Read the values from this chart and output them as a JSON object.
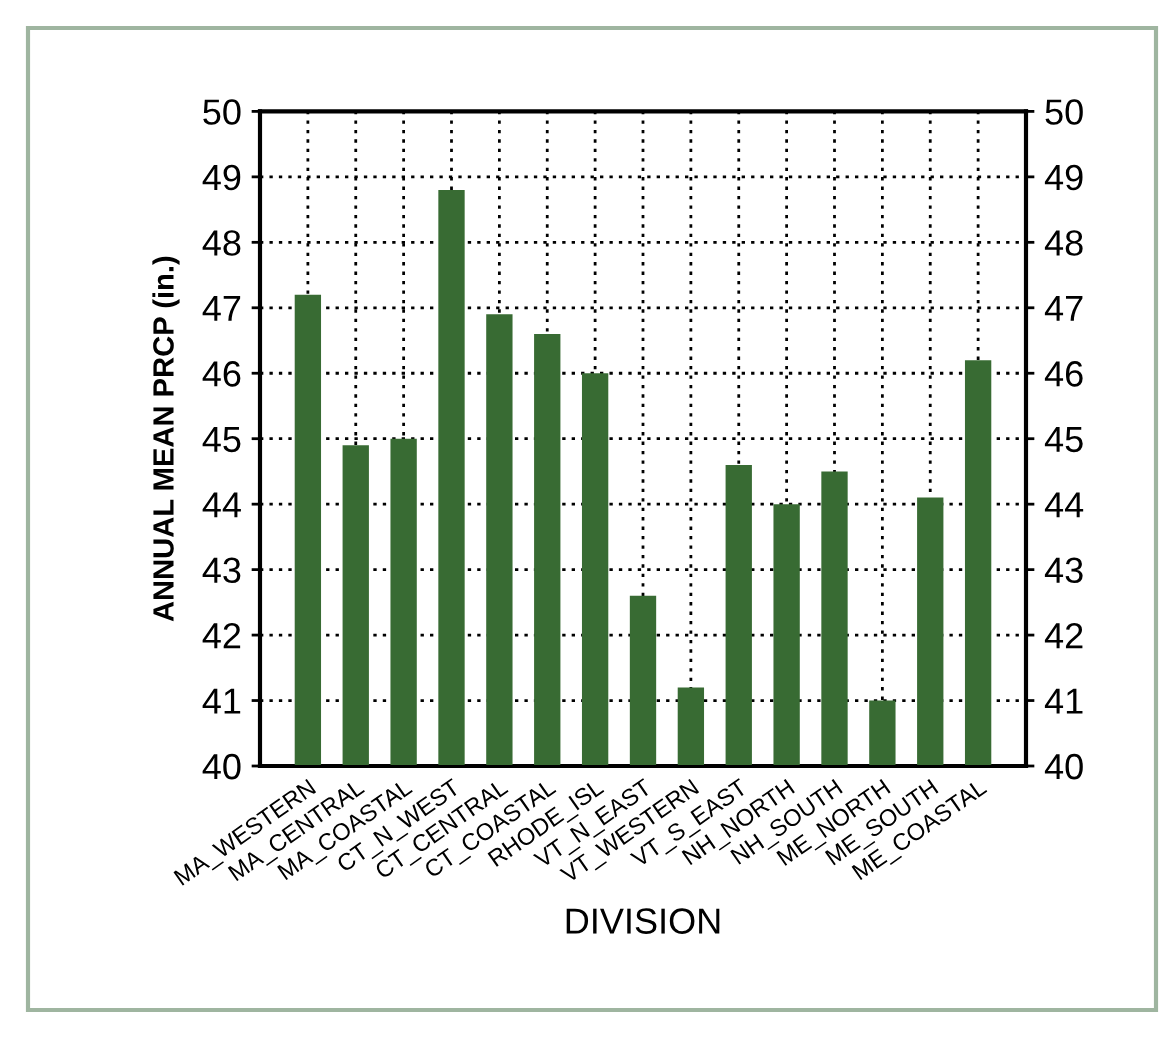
{
  "chart_data": {
    "type": "bar",
    "xlabel": "DIVISION",
    "ylabel": "ANNUAL MEAN PRCP (in.)",
    "categories": [
      "MA_WESTERN",
      "MA_CENTRAL",
      "MA_COASTAL",
      "CT_N_WEST",
      "CT_CENTRAL",
      "CT_COASTAL",
      "RHODE_ISL",
      "VT_N_EAST",
      "VT_WESTERN",
      "VT_S_EAST",
      "NH_NORTH",
      "NH_SOUTH",
      "ME_NORTH",
      "ME_SOUTH",
      "ME_COASTAL"
    ],
    "values": [
      47.2,
      44.9,
      45.0,
      48.8,
      46.9,
      46.6,
      46.0,
      42.6,
      41.2,
      44.6,
      44.0,
      44.5,
      41.0,
      44.1,
      46.2
    ],
    "color": "#386b33",
    "ylim": [
      40,
      50
    ],
    "yticks": [
      40,
      41,
      42,
      43,
      44,
      45,
      46,
      47,
      48,
      49,
      50
    ],
    "y2lim": [
      40,
      50
    ],
    "y2ticks": [
      40,
      41,
      42,
      43,
      44,
      45,
      46,
      47,
      48,
      49,
      50
    ],
    "grid": true,
    "legend": false
  }
}
